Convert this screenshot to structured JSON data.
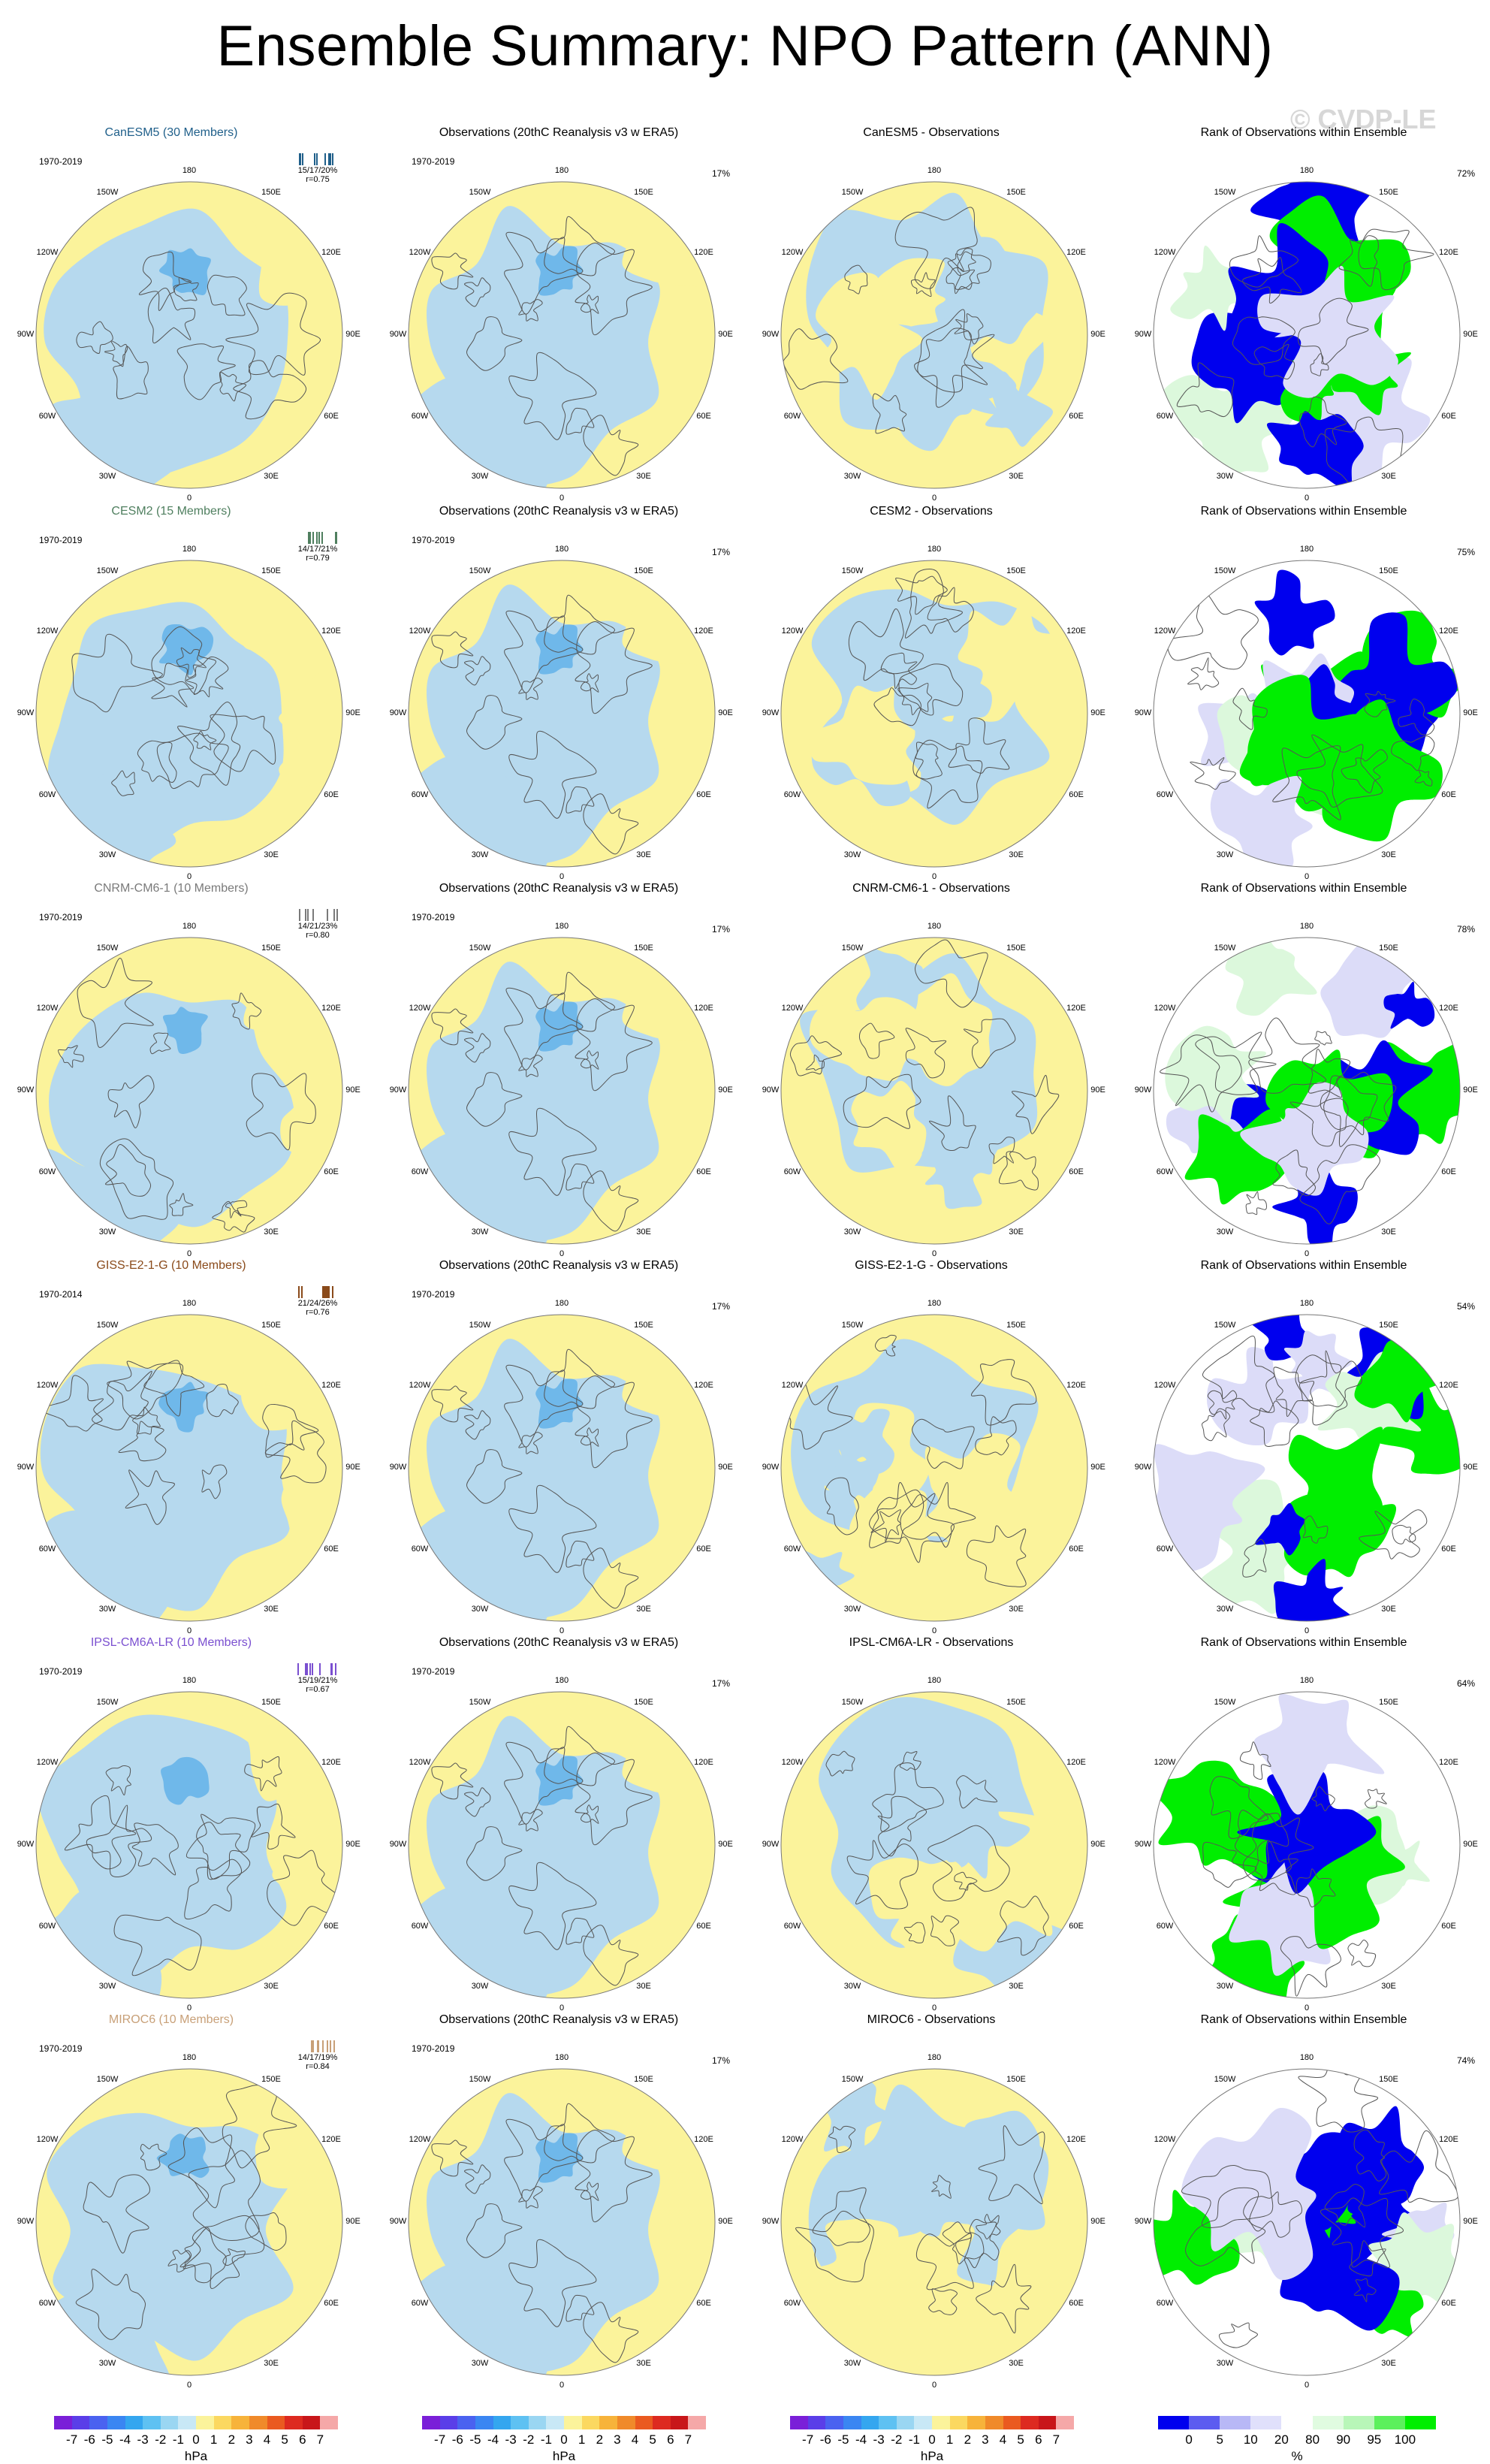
{
  "figure": {
    "title": "Ensemble Summary: NPO Pattern (ANN)",
    "watermark": "© CVDP-LE",
    "colors": {
      "positive_fill": "#fbf39b",
      "negative_fill": "#b6d9ee",
      "strong_negative_fill": "#6fb8ea",
      "rank_low": "#0000ee",
      "rank_low_mid": "#dcdcf8",
      "rank_high": "#00ee00",
      "rank_high_mid": "#dcf8dc",
      "coast": "#555555"
    },
    "obs_title": "Observations (20thC Reanalysis v3 w ERA5)",
    "rank_title": "Rank of Observations within Ensemble",
    "lon_labels": [
      "180",
      "150E",
      "120E",
      "90E",
      "60E",
      "30E",
      "0",
      "30W",
      "60W",
      "90W",
      "120W",
      "150W"
    ]
  },
  "rows": [
    {
      "model": "CanESM5 (30 Members)",
      "model_color": "#1f5f8a",
      "period": "1970-2019",
      "stats": "15/17/20%",
      "r": "r=0.75",
      "obs_period": "1970-2019",
      "obs_pct": "17%",
      "diff_title": "CanESM5 - Observations",
      "rank_pct": "72%"
    },
    {
      "model": "CESM2 (15 Members)",
      "model_color": "#4f7f5f",
      "period": "1970-2019",
      "stats": "14/17/21%",
      "r": "r=0.79",
      "obs_period": "1970-2019",
      "obs_pct": "17%",
      "diff_title": "CESM2 - Observations",
      "rank_pct": "75%"
    },
    {
      "model": "CNRM-CM6-1 (10 Members)",
      "model_color": "#7a7a7a",
      "period": "1970-2019",
      "stats": "14/21/23%",
      "r": "r=0.80",
      "obs_period": "1970-2019",
      "obs_pct": "17%",
      "diff_title": "CNRM-CM6-1 - Observations",
      "rank_pct": "78%"
    },
    {
      "model": "GISS-E2-1-G (10 Members)",
      "model_color": "#8a4a1a",
      "period": "1970-2014",
      "stats": "21/24/26%",
      "r": "r=0.76",
      "obs_period": "1970-2019",
      "obs_pct": "17%",
      "diff_title": "GISS-E2-1-G - Observations",
      "rank_pct": "54%"
    },
    {
      "model": "IPSL-CM6A-LR (10 Members)",
      "model_color": "#7a4fd0",
      "period": "1970-2019",
      "stats": "15/19/21%",
      "r": "r=0.67",
      "obs_period": "1970-2019",
      "obs_pct": "17%",
      "diff_title": "IPSL-CM6A-LR - Observations",
      "rank_pct": "64%"
    },
    {
      "model": "MIROC6 (10 Members)",
      "model_color": "#c8a078",
      "period": "1970-2019",
      "stats": "14/17/19%",
      "r": "r=0.84",
      "obs_period": "1970-2019",
      "obs_pct": "17%",
      "diff_title": "MIROC6 - Observations",
      "rank_pct": "74%"
    }
  ],
  "colorbars": {
    "hpa": {
      "ticks": [
        "-7",
        "-6",
        "-5",
        "-4",
        "-3",
        "-2",
        "-1",
        "0",
        "1",
        "2",
        "3",
        "4",
        "5",
        "6",
        "7"
      ],
      "unit": "hPa",
      "colors": [
        "#7a1fd8",
        "#5a3ee8",
        "#4a62f0",
        "#3a86f2",
        "#34a6ef",
        "#5ec1f2",
        "#9ad6f2",
        "#c8e8f6",
        "#fbf39b",
        "#fbd860",
        "#f7b33a",
        "#f08a2a",
        "#ea5a20",
        "#dd2a20",
        "#c8161a",
        "#f5a8a8"
      ]
    },
    "pct": {
      "ticks": [
        "0",
        "5",
        "10",
        "20",
        "80",
        "90",
        "95",
        "100"
      ],
      "unit": "%",
      "colors": [
        "#0000ee",
        "#5c5cf0",
        "#b8b8f6",
        "#e0e0fb",
        "#ffffff",
        "#e0fbe0",
        "#b8f6b8",
        "#5cf05c",
        "#00ee00"
      ]
    }
  }
}
